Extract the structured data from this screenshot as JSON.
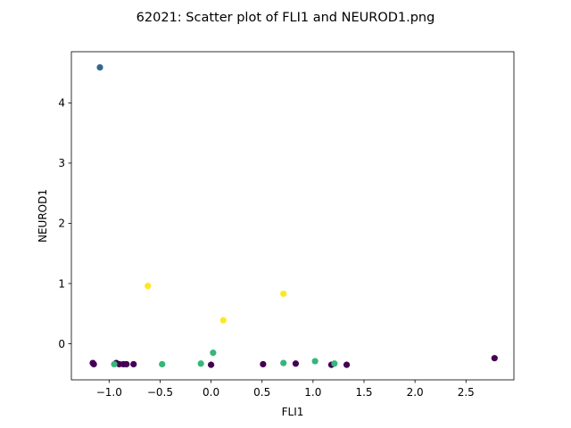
{
  "chart_data": {
    "type": "scatter",
    "title": "62021: Scatter plot of FLI1 and NEUROD1.png",
    "xlabel": "FLI1",
    "ylabel": "NEUROD1",
    "xlim": [
      -1.37,
      2.97
    ],
    "ylim": [
      -0.6,
      4.85
    ],
    "xticks": [
      -1.0,
      -0.5,
      0.0,
      0.5,
      1.0,
      1.5,
      2.0,
      2.5
    ],
    "xtick_labels": [
      "−1.0",
      "−0.5",
      "0.0",
      "0.5",
      "1.0",
      "1.5",
      "2.0",
      "2.5"
    ],
    "yticks": [
      0,
      1,
      2,
      3,
      4
    ],
    "ytick_labels": [
      "0",
      "1",
      "2",
      "3",
      "4"
    ],
    "grid": false,
    "colors": {
      "purple": "#440154",
      "blue": "#31688e",
      "green": "#35b779",
      "yellow": "#fde725"
    },
    "points": [
      {
        "x": -1.09,
        "y": 4.59,
        "color": "#31688e"
      },
      {
        "x": -0.62,
        "y": 0.96,
        "color": "#fde725"
      },
      {
        "x": 0.12,
        "y": 0.39,
        "color": "#fde725"
      },
      {
        "x": 0.71,
        "y": 0.83,
        "color": "#fde725"
      },
      {
        "x": -1.16,
        "y": -0.32,
        "color": "#440154"
      },
      {
        "x": -1.15,
        "y": -0.34,
        "color": "#440154"
      },
      {
        "x": -0.93,
        "y": -0.32,
        "color": "#440154"
      },
      {
        "x": -0.9,
        "y": -0.34,
        "color": "#440154"
      },
      {
        "x": -0.86,
        "y": -0.34,
        "color": "#440154"
      },
      {
        "x": -0.83,
        "y": -0.34,
        "color": "#440154"
      },
      {
        "x": -0.76,
        "y": -0.34,
        "color": "#440154"
      },
      {
        "x": 0.0,
        "y": -0.35,
        "color": "#440154"
      },
      {
        "x": 0.51,
        "y": -0.34,
        "color": "#440154"
      },
      {
        "x": 0.83,
        "y": -0.33,
        "color": "#440154"
      },
      {
        "x": 1.18,
        "y": -0.35,
        "color": "#440154"
      },
      {
        "x": 1.33,
        "y": -0.35,
        "color": "#440154"
      },
      {
        "x": 2.78,
        "y": -0.24,
        "color": "#440154"
      },
      {
        "x": -0.95,
        "y": -0.34,
        "color": "#35b779"
      },
      {
        "x": -0.48,
        "y": -0.34,
        "color": "#35b779"
      },
      {
        "x": -0.1,
        "y": -0.33,
        "color": "#35b779"
      },
      {
        "x": 0.02,
        "y": -0.15,
        "color": "#35b779"
      },
      {
        "x": 0.71,
        "y": -0.32,
        "color": "#35b779"
      },
      {
        "x": 1.02,
        "y": -0.29,
        "color": "#35b779"
      },
      {
        "x": 1.21,
        "y": -0.33,
        "color": "#35b779"
      }
    ]
  }
}
